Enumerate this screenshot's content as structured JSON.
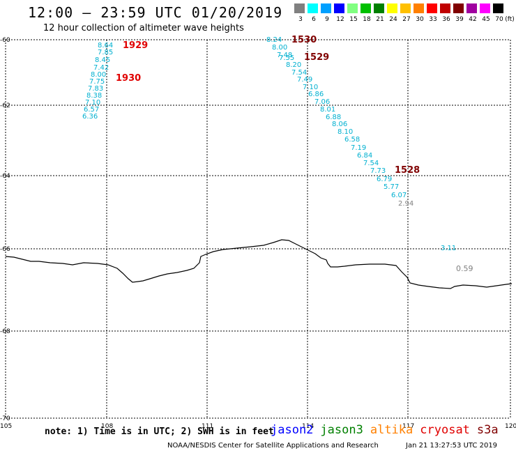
{
  "header": {
    "title": "12:00 – 23:59 UTC 01/20/2019",
    "subtitle": "12 hour collection of altimeter wave heights"
  },
  "legend": {
    "unit": "(ft)",
    "items": [
      {
        "label": "3",
        "color": "#808080"
      },
      {
        "label": "6",
        "color": "#00ffff"
      },
      {
        "label": "9",
        "color": "#00a0ff"
      },
      {
        "label": "12",
        "color": "#0000ff"
      },
      {
        "label": "15",
        "color": "#80ff80"
      },
      {
        "label": "18",
        "color": "#00c000"
      },
      {
        "label": "21",
        "color": "#008000"
      },
      {
        "label": "24",
        "color": "#ffff00"
      },
      {
        "label": "27",
        "color": "#ffc000"
      },
      {
        "label": "30",
        "color": "#ff8000"
      },
      {
        "label": "33",
        "color": "#ff0000"
      },
      {
        "label": "36",
        "color": "#c00000"
      },
      {
        "label": "39",
        "color": "#800000"
      },
      {
        "label": "42",
        "color": "#a000a0"
      },
      {
        "label": "45",
        "color": "#ff00ff"
      },
      {
        "label": "70",
        "color": "#000000"
      }
    ]
  },
  "axes": {
    "lat_ticks": [
      "-60",
      "-62",
      "-64",
      "-66",
      "-68",
      "-70"
    ],
    "lon_ticks": [
      "105",
      "108",
      "111",
      "114",
      "117",
      "120"
    ]
  },
  "passes": [
    {
      "time": "1929",
      "time_color": "#e00000",
      "values": [
        "8.64",
        "7.85",
        "8.45",
        "7.42",
        "8.00",
        "7.75",
        "7.83",
        "8.38",
        "7.10",
        "6.57",
        "6.36"
      ],
      "color": "#00b0d0"
    },
    {
      "time": "1930",
      "time_color": "#e00000",
      "values": [],
      "color": "#00b0d0"
    },
    {
      "time": "1530",
      "time_color": "#800000",
      "values": [
        "8.24",
        "8.00",
        "7.48",
        "7.55",
        "8.20",
        "7.54",
        "7.49",
        "7.10",
        "6.86",
        "7.06",
        "8.01",
        "6.88",
        "8.06",
        "8.10",
        "6.58",
        "7.19",
        "6.84",
        "7.54",
        "7.73",
        "6.79",
        "5.77",
        "6.07"
      ],
      "color": "#00b0d0"
    },
    {
      "time": "1529",
      "time_color": "#800000",
      "values": [],
      "color": "#00b0d0"
    },
    {
      "time": "1528",
      "time_color": "#800000",
      "values": [
        "2.94"
      ],
      "color": "#808080"
    }
  ],
  "isolated_values": [
    {
      "value": "3.11",
      "color": "#00b0d0"
    },
    {
      "value": "0.59",
      "color": "#808080"
    }
  ],
  "footer": {
    "note": "note: 1) Time is in UTC; 2) SWH is in feet",
    "satellites": [
      {
        "name": "jason2",
        "color": "#0000ff"
      },
      {
        "name": "jason3",
        "color": "#008000"
      },
      {
        "name": "altika",
        "color": "#ff8000"
      },
      {
        "name": "cryosat",
        "color": "#e00000"
      },
      {
        "name": "s3a",
        "color": "#800000"
      }
    ],
    "credit": "NOAA/NESDIS Center for Satellite Applications and Research",
    "timestamp": "Jan 21 13:27:53 UTC 2019"
  }
}
